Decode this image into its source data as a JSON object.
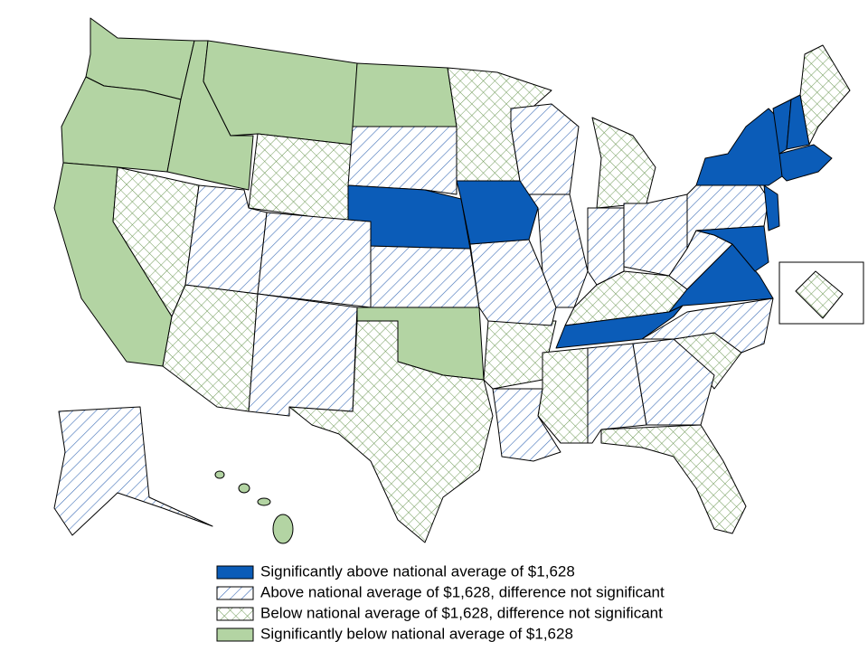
{
  "legend": {
    "items": [
      {
        "label": "Significantly above national average of $1,628"
      },
      {
        "label": "Above national average of $1,628, difference not significant"
      },
      {
        "label": "Below national average of $1,628, difference not significant"
      },
      {
        "label": "Significantly below national average of $1,628"
      }
    ]
  }
}
